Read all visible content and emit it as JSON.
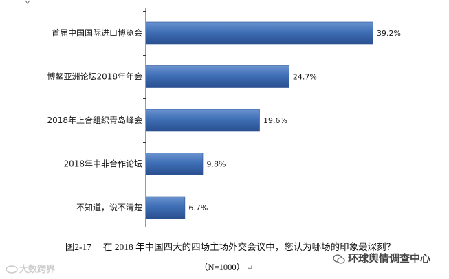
{
  "chart_data": {
    "type": "bar",
    "orientation": "horizontal",
    "categories": [
      "首届中国国际进口博览会",
      "博鳌亚洲论坛2018年年会",
      "2018年上合组织青岛峰会",
      "2018年中非合作论坛",
      "不知道，说不清楚"
    ],
    "values": [
      39.2,
      24.7,
      19.6,
      9.8,
      6.7
    ],
    "value_labels": [
      "39.2%",
      "24.7%",
      "19.6%",
      "9.8%",
      "6.7%"
    ],
    "unit": "%",
    "xlim": [
      0,
      45
    ],
    "grid": false,
    "legend": "none",
    "bar_color": "#3f6fb6",
    "bar_color_dark": "#2a4f8f",
    "bar_color_light": "#6b93cf"
  },
  "caption": {
    "text": "图2-17　 在 2018 年中国四大的四场主场外交会议中，您认为哪场的印象最深刻？",
    "sample": "（N=1000）",
    "return_mark": "↵"
  },
  "watermarks": {
    "left": "大数跨界",
    "right": "环球舆情调查中心"
  }
}
